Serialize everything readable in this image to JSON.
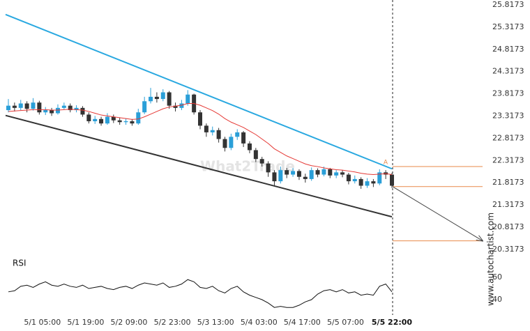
{
  "credit": "www.autochartist.com",
  "chart_data": [
    {
      "type": "candlestick",
      "watermark": "What2Trade",
      "pattern_label": "A",
      "up_color": "#2a9fd8",
      "down_color": "#333333",
      "x": [
        "4/30 18:00",
        "4/30 20:00",
        "4/30 22:00",
        "5/1 00:00",
        "5/1 02:00",
        "5/1 04:00",
        "5/1 06:00",
        "5/1 08:00",
        "5/1 10:00",
        "5/1 12:00",
        "5/1 14:00",
        "5/1 16:00",
        "5/1 18:00",
        "5/1 20:00",
        "5/1 22:00",
        "5/2 00:00",
        "5/2 02:00",
        "5/2 04:00",
        "5/2 06:00",
        "5/2 08:00",
        "5/2 10:00",
        "5/2 12:00",
        "5/2 14:00",
        "5/2 16:00",
        "5/2 18:00",
        "5/2 20:00",
        "5/2 22:00",
        "5/3 00:00",
        "5/3 02:00",
        "5/3 04:00",
        "5/3 06:00",
        "5/3 08:00",
        "5/3 10:00",
        "5/3 12:00",
        "5/3 14:00",
        "5/3 16:00",
        "5/3 18:00",
        "5/3 20:00",
        "5/3 22:00",
        "5/4 00:00",
        "5/4 02:00",
        "5/4 04:00",
        "5/4 06:00",
        "5/4 08:00",
        "5/4 10:00",
        "5/4 12:00",
        "5/4 14:00",
        "5/4 16:00",
        "5/4 18:00",
        "5/4 20:00",
        "5/4 22:00",
        "5/5 00:00",
        "5/5 02:00",
        "5/5 04:00",
        "5/5 06:00",
        "5/5 08:00",
        "5/5 10:00",
        "5/5 12:00",
        "5/5 14:00",
        "5/5 16:00",
        "5/5 18:00",
        "5/5 20:00",
        "5/5 22:00"
      ],
      "open": [
        23.45,
        23.55,
        23.5,
        23.6,
        23.48,
        23.62,
        23.4,
        23.45,
        23.38,
        23.5,
        23.55,
        23.45,
        23.5,
        23.35,
        23.2,
        23.25,
        23.15,
        23.3,
        23.22,
        23.18,
        23.2,
        23.15,
        23.4,
        23.65,
        23.75,
        23.7,
        23.85,
        23.55,
        23.5,
        23.6,
        23.8,
        23.4,
        23.1,
        22.95,
        23.0,
        22.8,
        22.6,
        22.85,
        22.95,
        22.7,
        22.55,
        22.35,
        22.25,
        22.05,
        21.85,
        22.1,
        22.0,
        22.08,
        21.95,
        21.9,
        22.1,
        22.0,
        22.12,
        21.98,
        22.05,
        22.0,
        21.85,
        21.9,
        21.75,
        21.85,
        21.8,
        22.05,
        22.0
      ],
      "high": [
        23.7,
        23.62,
        23.68,
        23.65,
        23.72,
        23.66,
        23.52,
        23.5,
        23.58,
        23.62,
        23.6,
        23.56,
        23.54,
        23.4,
        23.32,
        23.3,
        23.38,
        23.35,
        23.28,
        23.26,
        23.25,
        23.48,
        23.75,
        23.95,
        23.85,
        23.92,
        23.88,
        23.62,
        23.68,
        23.9,
        23.82,
        23.45,
        23.15,
        23.08,
        23.05,
        22.85,
        22.92,
        23.02,
        22.98,
        22.75,
        22.6,
        22.4,
        22.3,
        22.1,
        22.18,
        22.15,
        22.15,
        22.12,
        22.02,
        22.16,
        22.14,
        22.18,
        22.15,
        22.1,
        22.1,
        22.04,
        21.98,
        21.94,
        21.92,
        21.9,
        22.12,
        22.1,
        22.04
      ],
      "low": [
        23.4,
        23.42,
        23.45,
        23.4,
        23.44,
        23.35,
        23.34,
        23.32,
        23.35,
        23.46,
        23.4,
        23.4,
        23.3,
        23.15,
        23.14,
        23.1,
        23.12,
        23.16,
        23.12,
        23.12,
        23.1,
        23.12,
        23.36,
        23.6,
        23.62,
        23.65,
        23.48,
        23.42,
        23.45,
        23.55,
        23.35,
        23.02,
        22.85,
        22.88,
        22.72,
        22.52,
        22.55,
        22.78,
        22.62,
        22.48,
        22.28,
        22.18,
        21.95,
        21.75,
        21.8,
        21.92,
        21.95,
        21.88,
        21.82,
        21.86,
        21.94,
        21.96,
        21.92,
        21.92,
        21.94,
        21.78,
        21.8,
        21.68,
        21.7,
        21.72,
        21.76,
        21.9,
        21.7
      ],
      "close": [
        23.55,
        23.5,
        23.6,
        23.48,
        23.62,
        23.4,
        23.45,
        23.38,
        23.5,
        23.55,
        23.45,
        23.5,
        23.35,
        23.2,
        23.25,
        23.15,
        23.3,
        23.22,
        23.18,
        23.2,
        23.15,
        23.4,
        23.65,
        23.75,
        23.7,
        23.85,
        23.55,
        23.5,
        23.6,
        23.8,
        23.4,
        23.1,
        22.95,
        23.0,
        22.8,
        22.6,
        22.85,
        22.95,
        22.7,
        22.55,
        22.35,
        22.25,
        22.05,
        21.85,
        22.1,
        22.0,
        22.08,
        21.95,
        21.9,
        22.1,
        22.0,
        22.12,
        21.98,
        22.05,
        22.0,
        21.85,
        21.9,
        21.75,
        21.85,
        21.8,
        22.05,
        22.0,
        21.75
      ],
      "moving_average": {
        "color": "#e53935",
        "values": [
          23.42,
          23.43,
          23.44,
          23.45,
          23.46,
          23.46,
          23.46,
          23.45,
          23.45,
          23.46,
          23.47,
          23.46,
          23.45,
          23.42,
          23.38,
          23.34,
          23.32,
          23.3,
          23.28,
          23.26,
          23.24,
          23.25,
          23.3,
          23.36,
          23.42,
          23.48,
          23.52,
          23.54,
          23.56,
          23.6,
          23.6,
          23.56,
          23.5,
          23.44,
          23.36,
          23.26,
          23.18,
          23.12,
          23.06,
          22.98,
          22.9,
          22.8,
          22.7,
          22.58,
          22.5,
          22.42,
          22.36,
          22.3,
          22.24,
          22.2,
          22.18,
          22.15,
          22.13,
          22.11,
          22.1,
          22.08,
          22.06,
          22.03,
          22.01,
          22.0,
          22.01,
          22.02,
          22.0
        ]
      },
      "trend_lines": [
        {
          "color": "#29a8e0",
          "values": [
            25.6,
            22.13
          ]
        },
        {
          "color": "#333333",
          "values": [
            23.33,
            21.05
          ]
        }
      ],
      "levels": {
        "color": "#e8894a",
        "values": [
          22.18,
          21.73,
          20.51
        ]
      },
      "ylim": [
        20.206,
        25.927
      ],
      "yticks": [
        25.8173,
        25.3173,
        24.8173,
        24.3173,
        23.8173,
        23.3173,
        22.8173,
        22.3173,
        21.8173,
        21.3173,
        20.8173,
        20.3173
      ],
      "xticks": [
        "5/1 05:00",
        "5/1 19:00",
        "5/2 09:00",
        "5/2 23:00",
        "5/3 13:00",
        "5/4 03:00",
        "5/4 17:00",
        "5/5 07:00",
        "5/5 22:00"
      ]
    },
    {
      "type": "line",
      "title": "RSI",
      "color": "#111111",
      "values": [
        47,
        48,
        52,
        53,
        51,
        54,
        56,
        53,
        52,
        54,
        52,
        51,
        53,
        50,
        51,
        52,
        50,
        49,
        51,
        52,
        50,
        53,
        55,
        54,
        53,
        55,
        51,
        52,
        54,
        58,
        56,
        51,
        50,
        52,
        48,
        46,
        50,
        52,
        47,
        44,
        42,
        40,
        37,
        33,
        34,
        33,
        33,
        35,
        38,
        40,
        45,
        48,
        49,
        47,
        49,
        46,
        47,
        44,
        45,
        44,
        52,
        54,
        47
      ],
      "ylim": [
        26.25,
        74.4
      ],
      "yticks": [
        60,
        40
      ]
    }
  ]
}
